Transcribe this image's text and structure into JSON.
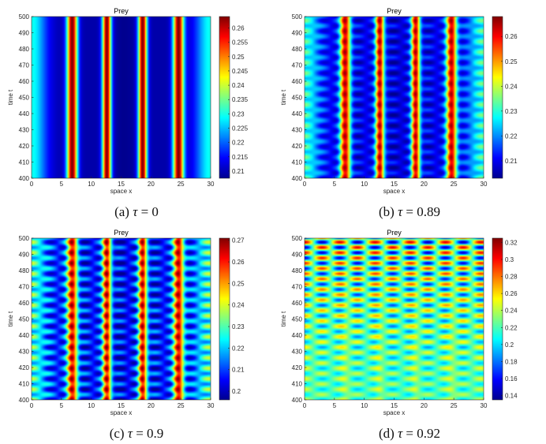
{
  "colormap": [
    "#00008f",
    "#0000ff",
    "#0080ff",
    "#00ffff",
    "#80ff80",
    "#ffff00",
    "#ff8000",
    "#ff0000",
    "#800000"
  ],
  "chart_data": [
    {
      "type": "heatmap",
      "title": "Prey",
      "xlabel": "space x",
      "ylabel": "time t",
      "xlim": [
        0,
        30
      ],
      "ylim": [
        400,
        500
      ],
      "xticks": [
        "0",
        "5",
        "10",
        "15",
        "20",
        "25",
        "30"
      ],
      "yticks": [
        "400",
        "410",
        "420",
        "430",
        "440",
        "450",
        "460",
        "470",
        "480",
        "490",
        "500"
      ],
      "colorbar": {
        "min": 0.2075,
        "max": 0.264,
        "ticks": [
          "0.21",
          "0.215",
          "0.22",
          "0.225",
          "0.23",
          "0.235",
          "0.24",
          "0.245",
          "0.25",
          "0.255",
          "0.26"
        ]
      },
      "pattern": "stationary vertical stripes",
      "stripe_peaks_x": [
        6.8,
        12.6,
        18.6,
        24.6
      ],
      "caption": {
        "label": "(a)",
        "symbol": "τ",
        "eq": "= 0"
      }
    },
    {
      "type": "heatmap",
      "title": "Prey",
      "xlabel": "space x",
      "ylabel": "time t",
      "xlim": [
        0,
        30
      ],
      "ylim": [
        400,
        500
      ],
      "xticks": [
        "0",
        "5",
        "10",
        "15",
        "20",
        "25",
        "30"
      ],
      "yticks": [
        "400",
        "410",
        "420",
        "430",
        "440",
        "450",
        "460",
        "470",
        "480",
        "490",
        "500"
      ],
      "colorbar": {
        "min": 0.203,
        "max": 0.268,
        "ticks": [
          "0.21",
          "0.22",
          "0.23",
          "0.24",
          "0.25",
          "0.26"
        ]
      },
      "pattern": "vertical stripes with weak periodic oscillation in time",
      "stripe_peaks_x": [
        6.8,
        12.6,
        18.6,
        24.6
      ],
      "caption": {
        "label": "(b)",
        "symbol": "τ",
        "eq": "= 0.89"
      }
    },
    {
      "type": "heatmap",
      "title": "Prey",
      "xlabel": "space x",
      "ylabel": "time t",
      "xlim": [
        0,
        30
      ],
      "ylim": [
        400,
        500
      ],
      "xticks": [
        "0",
        "5",
        "10",
        "15",
        "20",
        "25",
        "30"
      ],
      "yticks": [
        "400",
        "410",
        "420",
        "430",
        "440",
        "450",
        "460",
        "470",
        "480",
        "490",
        "500"
      ],
      "colorbar": {
        "min": 0.196,
        "max": 0.271,
        "ticks": [
          "0.2",
          "0.21",
          "0.22",
          "0.23",
          "0.24",
          "0.25",
          "0.26",
          "0.27"
        ]
      },
      "pattern": "vertical stripes with stronger periodic oscillation in time",
      "stripe_peaks_x": [
        6.8,
        12.6,
        18.6,
        24.6
      ],
      "caption": {
        "label": "(c)",
        "symbol": "τ",
        "eq": "= 0.9"
      }
    },
    {
      "type": "heatmap",
      "title": "Prey",
      "xlabel": "space x",
      "ylabel": "time t",
      "xlim": [
        0,
        30
      ],
      "ylim": [
        400,
        500
      ],
      "xticks": [
        "0",
        "5",
        "10",
        "15",
        "20",
        "25",
        "30"
      ],
      "yticks": [
        "400",
        "410",
        "420",
        "430",
        "440",
        "450",
        "460",
        "470",
        "480",
        "490",
        "500"
      ],
      "colorbar": {
        "min": 0.135,
        "max": 0.325,
        "ticks": [
          "0.14",
          "0.16",
          "0.18",
          "0.2",
          "0.22",
          "0.24",
          "0.26",
          "0.28",
          "0.3",
          "0.32"
        ]
      },
      "pattern": "spatiotemporal checkerboard oscillation, growing in amplitude with time",
      "stripe_peaks_x": [
        6.8,
        12.6,
        18.6,
        24.6
      ],
      "caption": {
        "label": "(d)",
        "symbol": "τ",
        "eq": "= 0.92"
      }
    }
  ]
}
